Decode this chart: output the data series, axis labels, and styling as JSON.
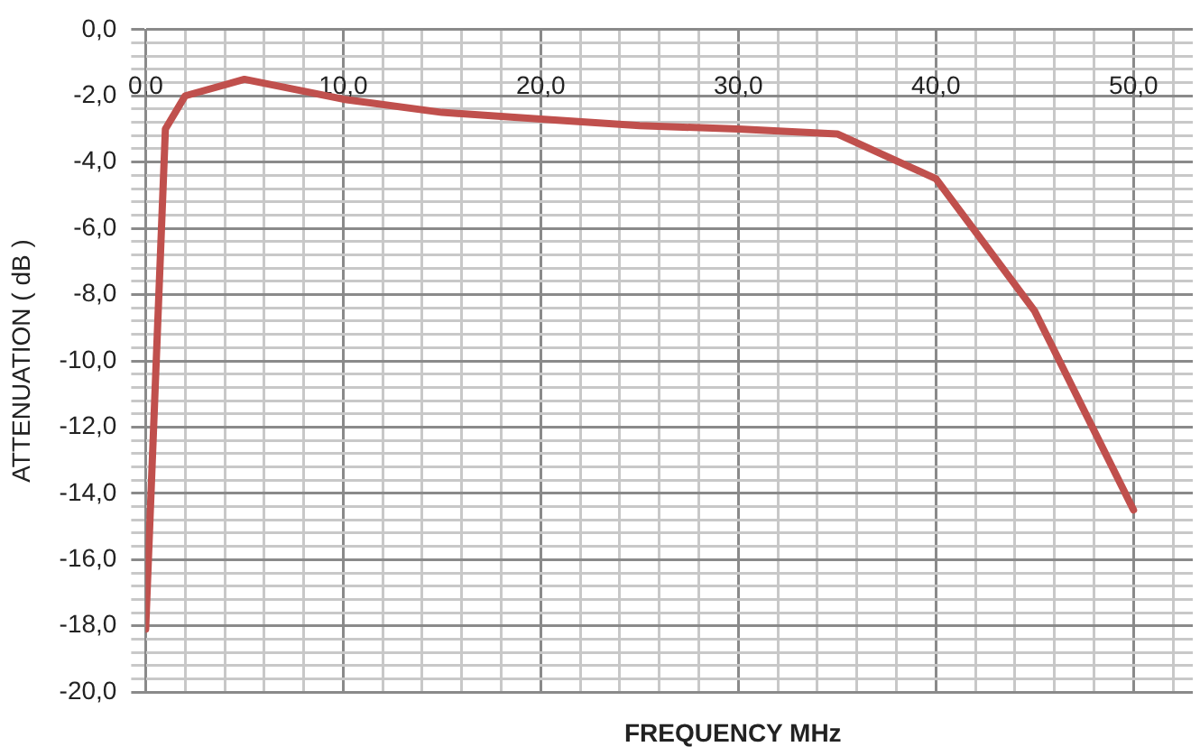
{
  "chart_data": {
    "type": "line",
    "xlabel": "FREQUENCY MHz",
    "ylabel": "ATTENUATION ( dB )",
    "x": [
      0,
      1,
      2,
      5,
      10,
      15,
      20,
      25,
      30,
      35,
      40,
      45,
      50
    ],
    "series": [
      {
        "color": "#c0504d",
        "values": [
          -18.1,
          -3.0,
          -2.0,
          -1.5,
          -2.1,
          -2.5,
          -2.7,
          -2.9,
          -3.0,
          -3.15,
          -4.5,
          -8.5,
          -14.5
        ]
      }
    ],
    "xlim": [
      0,
      53
    ],
    "xticks": [
      {
        "value": 0,
        "label": "0,0"
      },
      {
        "value": 2,
        "label": null
      },
      {
        "value": 4,
        "label": null
      },
      {
        "value": 6,
        "label": null
      },
      {
        "value": 8,
        "label": null
      },
      {
        "value": 10,
        "label": "10,0"
      },
      {
        "value": 12,
        "label": null
      },
      {
        "value": 14,
        "label": null
      },
      {
        "value": 16,
        "label": null
      },
      {
        "value": 18,
        "label": null
      },
      {
        "value": 20,
        "label": "20,0"
      },
      {
        "value": 22,
        "label": null
      },
      {
        "value": 24,
        "label": null
      },
      {
        "value": 26,
        "label": null
      },
      {
        "value": 28,
        "label": null
      },
      {
        "value": 30,
        "label": "30,0"
      },
      {
        "value": 32,
        "label": null
      },
      {
        "value": 34,
        "label": null
      },
      {
        "value": 36,
        "label": null
      },
      {
        "value": 38,
        "label": null
      },
      {
        "value": 40,
        "label": "40,0"
      },
      {
        "value": 42,
        "label": null
      },
      {
        "value": 44,
        "label": null
      },
      {
        "value": 46,
        "label": null
      },
      {
        "value": 48,
        "label": null
      },
      {
        "value": 50,
        "label": "50,0"
      },
      {
        "value": 52,
        "label": null
      }
    ],
    "ylim": [
      -20,
      0
    ],
    "yticks": [
      {
        "value": -20,
        "label": "-20,0"
      },
      {
        "value": -19.6,
        "label": null
      },
      {
        "value": -19.2,
        "label": null
      },
      {
        "value": -18.8,
        "label": null
      },
      {
        "value": -18.4,
        "label": null
      },
      {
        "value": -18,
        "label": "-18,0"
      },
      {
        "value": -17.6,
        "label": null
      },
      {
        "value": -17.2,
        "label": null
      },
      {
        "value": -16.8,
        "label": null
      },
      {
        "value": -16.4,
        "label": null
      },
      {
        "value": -16,
        "label": "-16,0"
      },
      {
        "value": -15.6,
        "label": null
      },
      {
        "value": -15.2,
        "label": null
      },
      {
        "value": -14.8,
        "label": null
      },
      {
        "value": -14.4,
        "label": null
      },
      {
        "value": -14,
        "label": "-14,0"
      },
      {
        "value": -13.6,
        "label": null
      },
      {
        "value": -13.2,
        "label": null
      },
      {
        "value": -12.8,
        "label": null
      },
      {
        "value": -12.4,
        "label": null
      },
      {
        "value": -12,
        "label": "-12,0"
      },
      {
        "value": -11.6,
        "label": null
      },
      {
        "value": -11.2,
        "label": null
      },
      {
        "value": -10.8,
        "label": null
      },
      {
        "value": -10.4,
        "label": null
      },
      {
        "value": -10,
        "label": "-10,0"
      },
      {
        "value": -9.6,
        "label": null
      },
      {
        "value": -9.2,
        "label": null
      },
      {
        "value": -8.8,
        "label": null
      },
      {
        "value": -8.4,
        "label": null
      },
      {
        "value": -8,
        "label": "-8,0"
      },
      {
        "value": -7.6,
        "label": null
      },
      {
        "value": -7.2,
        "label": null
      },
      {
        "value": -6.8,
        "label": null
      },
      {
        "value": -6.4,
        "label": null
      },
      {
        "value": -6,
        "label": "-6,0"
      },
      {
        "value": -5.6,
        "label": null
      },
      {
        "value": -5.2,
        "label": null
      },
      {
        "value": -4.8,
        "label": null
      },
      {
        "value": -4.4,
        "label": null
      },
      {
        "value": -4,
        "label": "-4,0"
      },
      {
        "value": -3.6,
        "label": null
      },
      {
        "value": -3.2,
        "label": null
      },
      {
        "value": -2.8,
        "label": null
      },
      {
        "value": -2.4,
        "label": null
      },
      {
        "value": -2,
        "label": "-2,0"
      },
      {
        "value": -1.6,
        "label": null
      },
      {
        "value": -1.2,
        "label": null
      },
      {
        "value": -0.8,
        "label": null
      },
      {
        "value": -0.4,
        "label": null
      },
      {
        "value": 0,
        "label": "0,0"
      }
    ],
    "grid": true,
    "legend": false,
    "marker": "none",
    "line_style": "solid"
  }
}
